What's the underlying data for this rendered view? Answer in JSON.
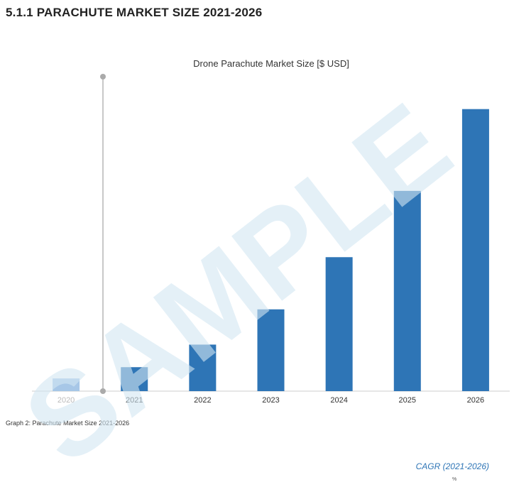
{
  "section_heading": "5.1.1 PARACHUTE MARKET SIZE 2021-2026",
  "caption": "Graph 2: Parachute Market Size 2021-2026",
  "cagr_label": "CAGR (2021-2026)",
  "cagr_value": "%",
  "watermark": "SAMPLE",
  "colors": {
    "bar": "#2e75b6",
    "bar_faded": "#a7c7e7",
    "watermark": "#d3e7f3",
    "axis": "#cccccc",
    "marker": "#999999"
  },
  "chart_data": {
    "type": "bar",
    "title": "Drone Parachute Market Size [$ USD]",
    "xlabel": "",
    "ylabel": "",
    "categories": [
      "2020",
      "2021",
      "2022",
      "2023",
      "2024",
      "2025",
      "2026"
    ],
    "values": [
      4.5,
      8.5,
      16.5,
      29,
      47.5,
      71,
      100
    ],
    "highlighted_category": "2020",
    "ylim": [
      0,
      112
    ],
    "grid": false
  }
}
